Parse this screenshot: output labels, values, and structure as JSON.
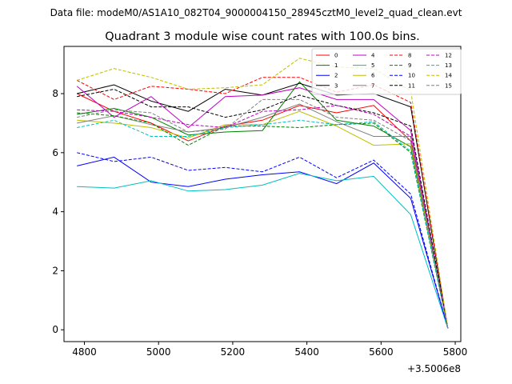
{
  "chart_data": {
    "type": "line",
    "suptitle": "Data file: modeM0/AS1A10_082T04_9000004150_28945cztM0_level2_quad_clean.evt",
    "title": "Quadrant 3 module wise count rates with 100.0s bins.",
    "xlabel": "",
    "ylabel": "",
    "x_offset_label": "+3.5006e8",
    "x": [
      4780,
      4880,
      4980,
      5080,
      5180,
      5280,
      5380,
      5480,
      5580,
      5680,
      5780
    ],
    "xlim": [
      4745,
      5815
    ],
    "ylim": [
      -0.4,
      9.6
    ],
    "xticks": [
      4800,
      5000,
      5200,
      5400,
      5600,
      5800
    ],
    "yticks": [
      0,
      2,
      4,
      6,
      8
    ],
    "legend_position": "top-right",
    "legend_columns": 4,
    "series": [
      {
        "name": "0",
        "color": "#ff0000",
        "dash": "solid",
        "values": [
          8.0,
          7.4,
          7.0,
          6.4,
          6.9,
          7.1,
          7.6,
          7.35,
          7.6,
          6.4,
          0.05
        ]
      },
      {
        "name": "1",
        "color": "#008000",
        "dash": "solid",
        "values": [
          7.3,
          7.5,
          7.2,
          6.6,
          6.7,
          6.75,
          8.4,
          7.1,
          6.9,
          6.2,
          0.05
        ]
      },
      {
        "name": "2",
        "color": "#0000ff",
        "dash": "solid",
        "values": [
          5.55,
          5.85,
          5.0,
          4.85,
          5.1,
          5.25,
          5.35,
          4.95,
          5.65,
          4.45,
          0.05
        ]
      },
      {
        "name": "3",
        "color": "#000000",
        "dash": "solid",
        "values": [
          8.0,
          8.3,
          7.75,
          7.4,
          8.15,
          7.95,
          8.35,
          7.95,
          8.0,
          7.55,
          0.05
        ]
      },
      {
        "name": "4",
        "color": "#c000c0",
        "dash": "solid",
        "values": [
          8.25,
          7.2,
          7.9,
          6.85,
          7.9,
          7.95,
          8.2,
          7.8,
          7.8,
          6.75,
          0.05
        ]
      },
      {
        "name": "5",
        "color": "#00bfbf",
        "dash": "solid",
        "values": [
          4.85,
          4.8,
          5.05,
          4.7,
          4.75,
          4.9,
          5.3,
          5.05,
          5.2,
          3.9,
          0.05
        ]
      },
      {
        "name": "6",
        "color": "#bfbf00",
        "dash": "solid",
        "values": [
          7.1,
          7.0,
          6.85,
          6.5,
          6.95,
          6.95,
          7.4,
          6.9,
          6.25,
          6.3,
          0.05
        ]
      },
      {
        "name": "7",
        "color": "#808080",
        "dash": "solid",
        "values": [
          7.0,
          7.25,
          6.95,
          6.7,
          6.85,
          7.2,
          7.65,
          7.05,
          6.55,
          6.55,
          0.05
        ]
      },
      {
        "name": "8",
        "color": "#ff0000",
        "dash": "dashed",
        "values": [
          8.45,
          7.8,
          8.25,
          8.15,
          8.0,
          8.55,
          8.55,
          8.05,
          8.3,
          7.7,
          0.05
        ]
      },
      {
        "name": "9",
        "color": "#008000",
        "dash": "dashed",
        "values": [
          7.35,
          7.25,
          7.0,
          6.25,
          6.9,
          6.9,
          6.85,
          6.95,
          7.0,
          6.0,
          0.05
        ]
      },
      {
        "name": "10",
        "color": "#0000ff",
        "dash": "dashed",
        "values": [
          6.0,
          5.7,
          5.85,
          5.4,
          5.5,
          5.35,
          5.85,
          5.15,
          5.75,
          4.6,
          0.05
        ]
      },
      {
        "name": "11",
        "color": "#000000",
        "dash": "dashed",
        "values": [
          7.9,
          8.15,
          7.55,
          7.55,
          7.2,
          7.45,
          7.95,
          7.6,
          7.35,
          6.9,
          0.05
        ]
      },
      {
        "name": "12",
        "color": "#c000c0",
        "dash": "dashed",
        "values": [
          7.45,
          7.4,
          7.2,
          6.95,
          6.85,
          7.4,
          7.45,
          7.6,
          7.3,
          6.55,
          0.05
        ]
      },
      {
        "name": "13",
        "color": "#00bfbf",
        "dash": "dashed",
        "values": [
          6.85,
          7.1,
          6.55,
          6.55,
          6.85,
          6.95,
          7.1,
          6.95,
          7.05,
          6.05,
          0.05
        ]
      },
      {
        "name": "14",
        "color": "#bfbf00",
        "dash": "dashed",
        "values": [
          8.45,
          8.85,
          8.55,
          8.15,
          8.2,
          8.3,
          9.2,
          8.9,
          8.85,
          8.1,
          0.05
        ]
      },
      {
        "name": "15",
        "color": "#808080",
        "dash": "dashed",
        "values": [
          7.2,
          7.45,
          7.35,
          6.7,
          6.8,
          7.8,
          7.8,
          7.2,
          7.1,
          6.4,
          0.05
        ]
      }
    ]
  }
}
